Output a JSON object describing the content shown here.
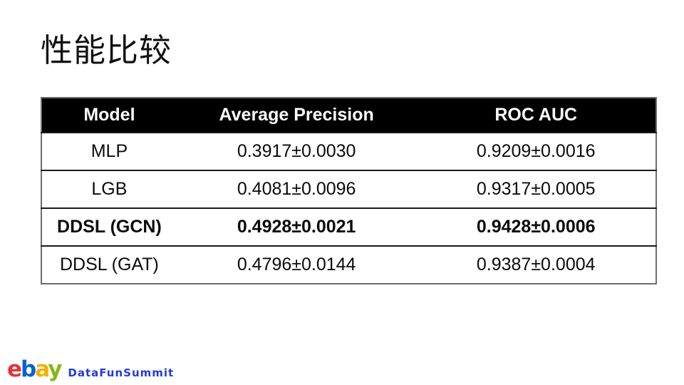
{
  "slide": {
    "title": "性能比较"
  },
  "table": {
    "headers": {
      "model": "Model",
      "average_precision": "Average Precision",
      "roc_auc": "ROC AUC"
    },
    "rows": [
      {
        "model": "MLP",
        "average_precision": "0.3917±0.0030",
        "roc_auc": "0.9209±0.0016",
        "emphasized": false
      },
      {
        "model": "LGB",
        "average_precision": "0.4081±0.0096",
        "roc_auc": "0.9317±0.0005",
        "emphasized": false
      },
      {
        "model": "DDSL (GCN)",
        "average_precision": "0.4928±0.0021",
        "roc_auc": "0.9428±0.0006",
        "emphasized": true
      },
      {
        "model": "DDSL (GAT)",
        "average_precision": "0.4796±0.0144",
        "roc_auc": "0.9387±0.0004",
        "emphasized": false
      }
    ]
  },
  "chart_data": {
    "type": "table",
    "title": "性能比较",
    "columns": [
      "Model",
      "Average Precision",
      "ROC AUC"
    ],
    "rows": [
      [
        "MLP",
        "0.3917±0.0030",
        "0.9209±0.0016"
      ],
      [
        "LGB",
        "0.4081±0.0096",
        "0.9317±0.0005"
      ],
      [
        "DDSL (GCN)",
        "0.4928±0.0021",
        "0.9428±0.0006"
      ],
      [
        "DDSL (GAT)",
        "0.4796±0.0144",
        "0.9387±0.0004"
      ]
    ]
  },
  "footer": {
    "ebay_letters": [
      {
        "char": "e",
        "color": "#e53238"
      },
      {
        "char": "b",
        "color": "#0064d2"
      },
      {
        "char": "a",
        "color": "#f5af02"
      },
      {
        "char": "y",
        "color": "#86b817"
      }
    ],
    "datafun_label": "DataFunSummit",
    "datafun_color": "#2438e0"
  },
  "colors": {
    "header_bg": "#000000",
    "header_text": "#ffffff",
    "outer_border": "#6e6e6e",
    "row_divider": "#1a1a1a"
  }
}
